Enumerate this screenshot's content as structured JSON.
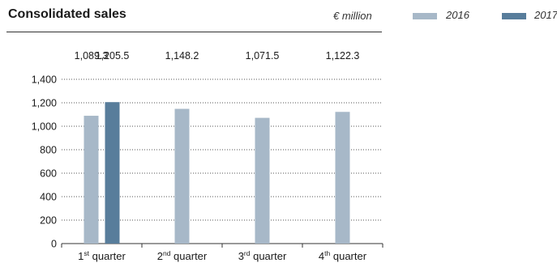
{
  "header": {
    "title": "Consolidated sales",
    "unit": "€ million"
  },
  "legend": [
    {
      "label": "2016",
      "color": "#a7b8c8"
    },
    {
      "label": "2017",
      "color": "#587d9b"
    }
  ],
  "chart_data": {
    "type": "bar",
    "categories": [
      {
        "label": "1",
        "sup": "st",
        "suffix": " quarter"
      },
      {
        "label": "2",
        "sup": "nd",
        "suffix": " quarter"
      },
      {
        "label": "3",
        "sup": "rd",
        "suffix": " quarter"
      },
      {
        "label": "4",
        "sup": "th",
        "suffix": " quarter"
      }
    ],
    "series": [
      {
        "name": "2016",
        "color": "#a7b8c8",
        "values": [
          1089.3,
          1148.2,
          1071.5,
          1122.3
        ]
      },
      {
        "name": "2017",
        "color": "#587d9b",
        "values": [
          1205.5,
          null,
          null,
          null
        ]
      }
    ],
    "value_labels": [
      "1,089.3",
      "1,205.5",
      "1,148.2",
      "1,071.5",
      "1,122.3"
    ],
    "y_ticks": [
      "0",
      "200",
      "400",
      "600",
      "800",
      "1,000",
      "1,200",
      "1,400"
    ],
    "ylim": [
      0,
      1400
    ],
    "grid": "dotted horizontal",
    "legend_position": "top-right"
  }
}
